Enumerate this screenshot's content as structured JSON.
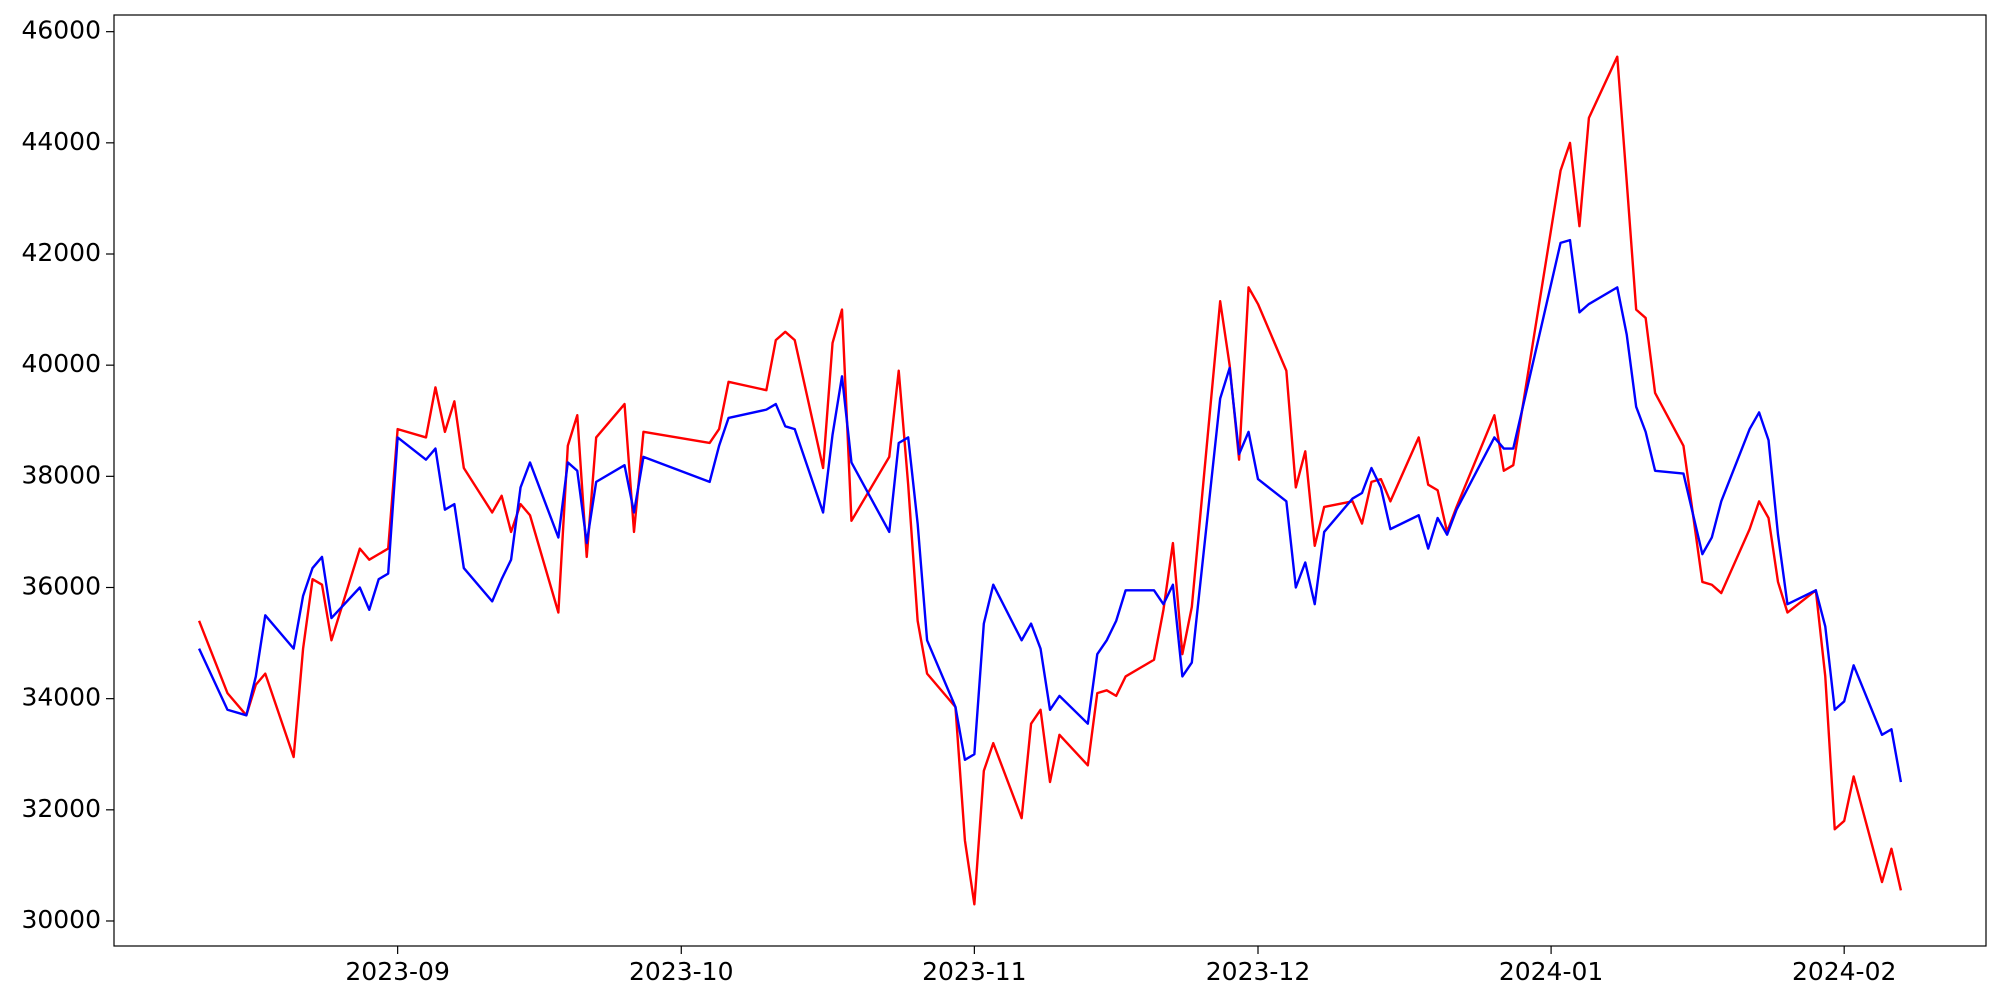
{
  "chart_data": {
    "type": "line",
    "x": [
      "2023-08-11",
      "2023-08-14",
      "2023-08-16",
      "2023-08-17",
      "2023-08-18",
      "2023-08-21",
      "2023-08-22",
      "2023-08-23",
      "2023-08-24",
      "2023-08-25",
      "2023-08-28",
      "2023-08-29",
      "2023-08-30",
      "2023-08-31",
      "2023-09-01",
      "2023-09-04",
      "2023-09-05",
      "2023-09-06",
      "2023-09-07",
      "2023-09-08",
      "2023-09-11",
      "2023-09-12",
      "2023-09-13",
      "2023-09-14",
      "2023-09-15",
      "2023-09-18",
      "2023-09-19",
      "2023-09-20",
      "2023-09-21",
      "2023-09-22",
      "2023-09-25",
      "2023-09-26",
      "2023-09-27",
      "2023-10-04",
      "2023-10-05",
      "2023-10-06",
      "2023-10-10",
      "2023-10-11",
      "2023-10-12",
      "2023-10-13",
      "2023-10-16",
      "2023-10-17",
      "2023-10-18",
      "2023-10-19",
      "2023-10-23",
      "2023-10-24",
      "2023-10-25",
      "2023-10-26",
      "2023-10-27",
      "2023-10-30",
      "2023-10-31",
      "2023-11-01",
      "2023-11-02",
      "2023-11-03",
      "2023-11-06",
      "2023-11-07",
      "2023-11-08",
      "2023-11-09",
      "2023-11-10",
      "2023-11-13",
      "2023-11-14",
      "2023-11-15",
      "2023-11-16",
      "2023-11-17",
      "2023-11-20",
      "2023-11-21",
      "2023-11-22",
      "2023-11-23",
      "2023-11-24",
      "2023-11-27",
      "2023-11-28",
      "2023-11-29",
      "2023-11-30",
      "2023-12-01",
      "2023-12-04",
      "2023-12-05",
      "2023-12-06",
      "2023-12-07",
      "2023-12-08",
      "2023-12-11",
      "2023-12-12",
      "2023-12-13",
      "2023-12-14",
      "2023-12-15",
      "2023-12-18",
      "2023-12-19",
      "2023-12-20",
      "2023-12-21",
      "2023-12-22",
      "2023-12-26",
      "2023-12-27",
      "2023-12-28",
      "2024-01-02",
      "2024-01-03",
      "2024-01-04",
      "2024-01-05",
      "2024-01-08",
      "2024-01-09",
      "2024-01-10",
      "2024-01-11",
      "2024-01-12",
      "2024-01-15",
      "2024-01-17",
      "2024-01-18",
      "2024-01-19",
      "2024-01-22",
      "2024-01-23",
      "2024-01-24",
      "2024-01-25",
      "2024-01-26",
      "2024-01-29",
      "2024-01-30",
      "2024-01-31",
      "2024-02-01",
      "2024-02-02",
      "2024-02-05",
      "2024-02-06",
      "2024-02-07"
    ],
    "series": [
      {
        "color": "#ff0000",
        "values": [
          35400,
          34100,
          33700,
          34250,
          34450,
          32950,
          34900,
          36150,
          36050,
          35050,
          36700,
          36500,
          36600,
          36700,
          38850,
          38700,
          39600,
          38800,
          39350,
          38150,
          37350,
          37650,
          37000,
          37500,
          37300,
          35550,
          38550,
          39100,
          36550,
          38700,
          39300,
          37000,
          38800,
          38600,
          38850,
          39700,
          39550,
          40450,
          40600,
          40450,
          38150,
          40400,
          41000,
          37200,
          38350,
          39900,
          37850,
          35400,
          34450,
          33850,
          31450,
          30300,
          32700,
          33200,
          31850,
          33550,
          33800,
          32500,
          33350,
          32800,
          34100,
          34150,
          34050,
          34400,
          34700,
          35600,
          36800,
          34800,
          35650,
          41150,
          40000,
          38300,
          41400,
          41100,
          39900,
          37800,
          38450,
          36750,
          37450,
          37550,
          37150,
          37900,
          37950,
          37550,
          38700,
          37850,
          37750,
          37000,
          37450,
          39100,
          38100,
          38200,
          43500,
          44000,
          42500,
          44450,
          45550,
          43300,
          41000,
          40850,
          39500,
          38550,
          36100,
          36050,
          35900,
          37050,
          37550,
          37250,
          36100,
          35550,
          35950,
          34400,
          31650,
          31800,
          32600,
          30700,
          31300,
          30550
        ]
      },
      {
        "color": "#0000ff",
        "values": [
          34900,
          33800,
          33700,
          34400,
          35500,
          34900,
          35850,
          36350,
          36550,
          35450,
          36000,
          35600,
          36150,
          36250,
          38700,
          38300,
          38500,
          37400,
          37500,
          36350,
          35750,
          36150,
          36500,
          37800,
          38250,
          36900,
          38250,
          38100,
          36800,
          37900,
          38200,
          37350,
          38350,
          37900,
          38550,
          39050,
          39200,
          39300,
          38900,
          38850,
          37350,
          38750,
          39800,
          38250,
          37000,
          38600,
          38700,
          37150,
          35050,
          33850,
          32900,
          33000,
          35350,
          36050,
          35050,
          35350,
          34900,
          33800,
          34050,
          33550,
          34800,
          35050,
          35400,
          35950,
          35950,
          35700,
          36050,
          34400,
          34650,
          39400,
          39950,
          38400,
          38800,
          37950,
          37550,
          36000,
          36450,
          35700,
          37000,
          37600,
          37700,
          38150,
          37800,
          37050,
          37300,
          36700,
          37250,
          36950,
          37400,
          38700,
          38500,
          38500,
          42200,
          42250,
          40950,
          41100,
          41400,
          40550,
          39250,
          38800,
          38100,
          38050,
          36600,
          36900,
          37550,
          38850,
          39150,
          38650,
          36950,
          35700,
          35950,
          35300,
          33800,
          33950,
          34600,
          33350,
          33450,
          32500
        ]
      }
    ],
    "xlim": [
      "2023-08-02",
      "2024-02-16"
    ],
    "xticks": [
      {
        "value": "2023-09-01",
        "label": "2023-09"
      },
      {
        "value": "2023-10-01",
        "label": "2023-10"
      },
      {
        "value": "2023-11-01",
        "label": "2023-11"
      },
      {
        "value": "2023-12-01",
        "label": "2023-12"
      },
      {
        "value": "2024-01-01",
        "label": "2024-01"
      },
      {
        "value": "2024-02-01",
        "label": "2024-02"
      }
    ],
    "ylim": [
      29550,
      46300
    ],
    "yticks": [
      30000,
      32000,
      34000,
      36000,
      38000,
      40000,
      42000,
      44000,
      46000
    ],
    "grid": false
  }
}
